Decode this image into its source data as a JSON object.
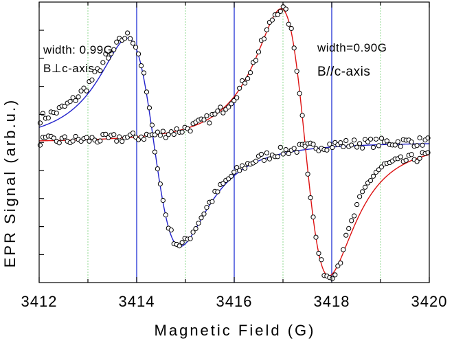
{
  "chart_data": {
    "type": "scatter",
    "xlabel": "Magnetic Field (G)",
    "ylabel": "EPR Signal (arb.u.)",
    "xlim": [
      3412,
      3420
    ],
    "ylim": [
      -1.05,
      1.05
    ],
    "x_ticks": [
      "3412",
      "3414",
      "3416",
      "3418",
      "3420"
    ],
    "grid": "vertical lines: dotted green at odd fields, solid blue at 3414, 3416, 3418",
    "legend": "none",
    "annotations": {
      "perp_width": "width: 0.99G",
      "perp_orientation": "B⊥c-axis",
      "par_width": "width=0.90G",
      "par_orientation": "B//c-axis"
    },
    "series": [
      {
        "marker": "open circles (data) + blue fit line",
        "center": 3414.35,
        "width": 0.99,
        "amplitude": 0.78,
        "peak": {
          "x": 3413.85,
          "y": 0.62
        },
        "trough": {
          "x": 3414.85,
          "y": -0.7
        }
      },
      {
        "marker": "open circles (data) + red fit line",
        "center": 3417.45,
        "width": 0.9,
        "amplitude": 1.0,
        "peak": {
          "x": 3417.0,
          "y": 0.82
        },
        "trough": {
          "x": 3417.9,
          "y": -0.9
        }
      }
    ]
  },
  "colors": {
    "fit_perp": "#2222cc",
    "fit_par": "#dd1111",
    "ref_line": "#1f2fd4",
    "grid_dotted": "#8fd88f",
    "marker": "#000000"
  }
}
